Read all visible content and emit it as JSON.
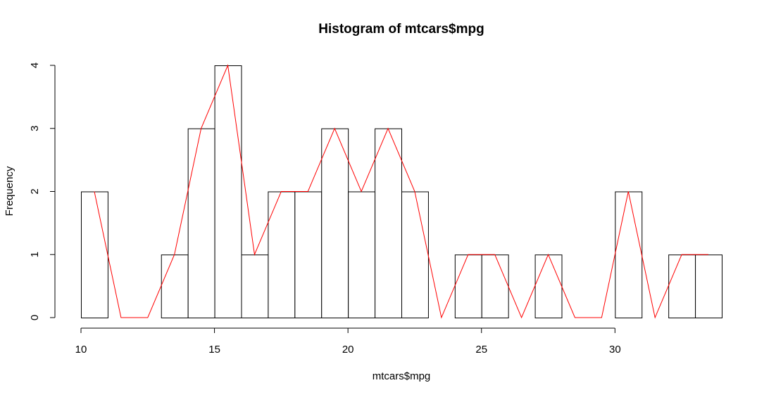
{
  "chart_data": {
    "type": "bar",
    "title": "Histogram of mtcars$mpg",
    "xlabel": "mtcars$mpg",
    "ylabel": "Frequency",
    "xlim": [
      10,
      34
    ],
    "ylim": [
      0,
      4
    ],
    "x_ticks": [
      "10",
      "15",
      "20",
      "25",
      "30"
    ],
    "y_ticks": [
      "0",
      "1",
      "2",
      "3",
      "4"
    ],
    "bin_edges": [
      10,
      11,
      12,
      13,
      14,
      15,
      16,
      17,
      18,
      19,
      20,
      21,
      22,
      23,
      24,
      25,
      26,
      27,
      28,
      29,
      30,
      31,
      32,
      33,
      34
    ],
    "counts": [
      2,
      0,
      0,
      1,
      3,
      4,
      1,
      2,
      2,
      3,
      2,
      3,
      2,
      0,
      1,
      1,
      0,
      1,
      0,
      0,
      2,
      0,
      1,
      1
    ],
    "bar_fill": "#ffffff",
    "bar_stroke": "#000000",
    "overlay_line": {
      "color": "#ff0000",
      "x": [
        10.5,
        11.5,
        12.5,
        13.5,
        14.5,
        15.5,
        16.5,
        17.5,
        18.5,
        19.5,
        20.5,
        21.5,
        22.5,
        23.5,
        24.5,
        25.5,
        26.5,
        27.5,
        28.5,
        29.5,
        30.5,
        31.5,
        32.5,
        33.5
      ],
      "y": [
        2,
        0,
        0,
        1,
        3,
        4,
        1,
        2,
        2,
        3,
        2,
        3,
        2,
        0,
        1,
        1,
        0,
        1,
        0,
        0,
        2,
        0,
        1,
        1
      ]
    },
    "grid": false
  }
}
